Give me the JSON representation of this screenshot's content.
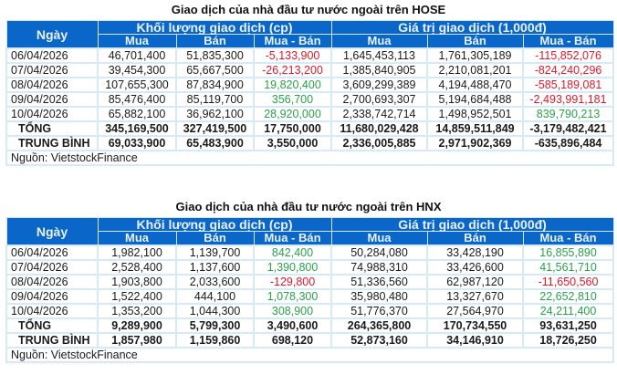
{
  "colors": {
    "header_bg": "#0b66c9",
    "header_text": "#e8f2ff",
    "border": "#d6e9f7",
    "negative": "#e0192b",
    "positive": "#2aa24a"
  },
  "hose": {
    "title": "Giao dịch của nhà đầu tư nước ngoài trên HOSE",
    "headers": {
      "date": "Ngày",
      "volume_group": "Khối lượng giao dịch (cp)",
      "value_group": "Giá trị giao dịch (1,000đ)",
      "buy": "Mua",
      "sell": "Bán",
      "net": "Mua - Bán"
    },
    "rows": [
      {
        "date": "06/04/2026",
        "vol_buy": "46,701,400",
        "vol_sell": "51,835,300",
        "vol_net": "-5,133,900",
        "val_buy": "1,645,453,113",
        "val_sell": "1,761,305,189",
        "val_net": "-115,852,076"
      },
      {
        "date": "07/04/2026",
        "vol_buy": "39,454,300",
        "vol_sell": "65,667,500",
        "vol_net": "-26,213,200",
        "val_buy": "1,385,840,905",
        "val_sell": "2,210,081,201",
        "val_net": "-824,240,296"
      },
      {
        "date": "08/04/2026",
        "vol_buy": "107,655,300",
        "vol_sell": "87,834,900",
        "vol_net": "19,820,400",
        "val_buy": "3,609,299,389",
        "val_sell": "4,194,488,470",
        "val_net": "-585,189,081"
      },
      {
        "date": "09/04/2026",
        "vol_buy": "85,476,400",
        "vol_sell": "85,119,700",
        "vol_net": "356,700",
        "val_buy": "2,700,693,307",
        "val_sell": "5,194,684,488",
        "val_net": "-2,493,991,181"
      },
      {
        "date": "10/04/2026",
        "vol_buy": "65,882,100",
        "vol_sell": "36,962,100",
        "vol_net": "28,920,000",
        "val_buy": "2,338,742,714",
        "val_sell": "1,498,952,501",
        "val_net": "839,790,213"
      }
    ],
    "total": {
      "label": "TỔNG",
      "vol_buy": "345,169,500",
      "vol_sell": "327,419,500",
      "vol_net": "17,750,000",
      "val_buy": "11,680,029,428",
      "val_sell": "14,859,511,849",
      "val_net": "-3,179,482,421"
    },
    "average": {
      "label": "TRUNG BÌNH",
      "vol_buy": "69,033,900",
      "vol_sell": "65,483,900",
      "vol_net": "3,550,000",
      "val_buy": "2,336,005,885",
      "val_sell": "2,971,902,369",
      "val_net": "-635,896,484"
    },
    "source": "Nguồn: VietstockFinance"
  },
  "hnx": {
    "title": "Giao dịch của nhà đầu tư nước ngoài trên HNX",
    "headers": {
      "date": "Ngày",
      "volume_group": "Khối lượng giao dịch (cp)",
      "value_group": "Giá trị giao dịch (1,000đ)",
      "buy": "Mua",
      "sell": "Bán",
      "net": "Mua - Bán"
    },
    "rows": [
      {
        "date": "06/04/2026",
        "vol_buy": "1,982,100",
        "vol_sell": "1,139,700",
        "vol_net": "842,400",
        "val_buy": "50,284,080",
        "val_sell": "33,428,190",
        "val_net": "16,855,890"
      },
      {
        "date": "07/04/2026",
        "vol_buy": "2,528,400",
        "vol_sell": "1,137,600",
        "vol_net": "1,390,800",
        "val_buy": "74,988,310",
        "val_sell": "33,426,600",
        "val_net": "41,561,710"
      },
      {
        "date": "08/04/2026",
        "vol_buy": "1,903,800",
        "vol_sell": "2,033,600",
        "vol_net": "-129,800",
        "val_buy": "51,336,560",
        "val_sell": "62,987,120",
        "val_net": "-11,650,560"
      },
      {
        "date": "09/04/2026",
        "vol_buy": "1,522,400",
        "vol_sell": "444,100",
        "vol_net": "1,078,300",
        "val_buy": "35,980,480",
        "val_sell": "13,327,670",
        "val_net": "22,652,810"
      },
      {
        "date": "10/04/2026",
        "vol_buy": "1,353,200",
        "vol_sell": "1,044,300",
        "vol_net": "308,900",
        "val_buy": "51,776,370",
        "val_sell": "27,564,970",
        "val_net": "24,211,400"
      }
    ],
    "total": {
      "label": "TỔNG",
      "vol_buy": "9,289,900",
      "vol_sell": "5,799,300",
      "vol_net": "3,490,600",
      "val_buy": "264,365,800",
      "val_sell": "170,734,550",
      "val_net": "93,631,250"
    },
    "average": {
      "label": "TRUNG BÌNH",
      "vol_buy": "1,857,980",
      "vol_sell": "1,159,860",
      "vol_net": "698,120",
      "val_buy": "52,873,160",
      "val_sell": "34,146,910",
      "val_net": "18,726,250"
    },
    "source": "Nguồn: VietstockFinance"
  }
}
